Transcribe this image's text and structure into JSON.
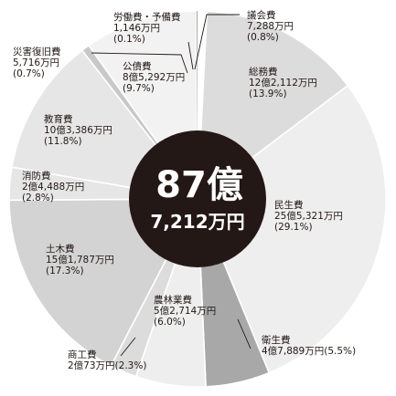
{
  "chart_data": {
    "type": "pie",
    "style": "donut",
    "center_label": {
      "line1": "87億",
      "line2": "7,212万円"
    },
    "slices": [
      {
        "name": "議会費",
        "amount": "7,288万円",
        "percent_text": "(0.8%)",
        "value": 0.8,
        "color": "#ffffff"
      },
      {
        "name": "総務費",
        "amount": "12億2,112万円",
        "percent_text": "(13.9%)",
        "value": 13.9,
        "color": "#dcdcdc"
      },
      {
        "name": "民生費",
        "amount": "25億5,321万円",
        "percent_text": "(29.1%)",
        "value": 29.1,
        "color": "#eeeeee"
      },
      {
        "name": "衛生費",
        "amount": "4億7,889万円",
        "percent_text": "(5.5%)",
        "value": 5.5,
        "color": "#a8a8a8"
      },
      {
        "name": "農林業費",
        "amount": "5億2,714万円",
        "percent_text": "(6.0%)",
        "value": 6.0,
        "color": "#eeeeee"
      },
      {
        "name": "商工費",
        "amount": "2億73万円",
        "percent_text": "(2.3%)",
        "value": 2.3,
        "color": "#dcdcdc"
      },
      {
        "name": "土木費",
        "amount": "15億1,787万円",
        "percent_text": "(17.3%)",
        "value": 17.3,
        "color": "#d3d3d3"
      },
      {
        "name": "消防費",
        "amount": "2億4,488万円",
        "percent_text": "(2.8%)",
        "value": 2.8,
        "color": "#e6e6e6"
      },
      {
        "name": "教育費",
        "amount": "10億3,386万円",
        "percent_text": "(11.8%)",
        "value": 11.8,
        "color": "#e6e6e6"
      },
      {
        "name": "災害復旧費",
        "amount": "5,716万円",
        "percent_text": "(0.7%)",
        "value": 0.7,
        "color": "#c8c8c8"
      },
      {
        "name": "公債費",
        "amount": "8億5,292万円",
        "percent_text": "(9.7%)",
        "value": 9.7,
        "color": "#f2f2f2"
      },
      {
        "name": "労働費・予備費",
        "amount": "1,146万円",
        "percent_text": "(0.1%)",
        "value": 0.1,
        "color": "#999999"
      }
    ],
    "center_color": "#231815"
  }
}
